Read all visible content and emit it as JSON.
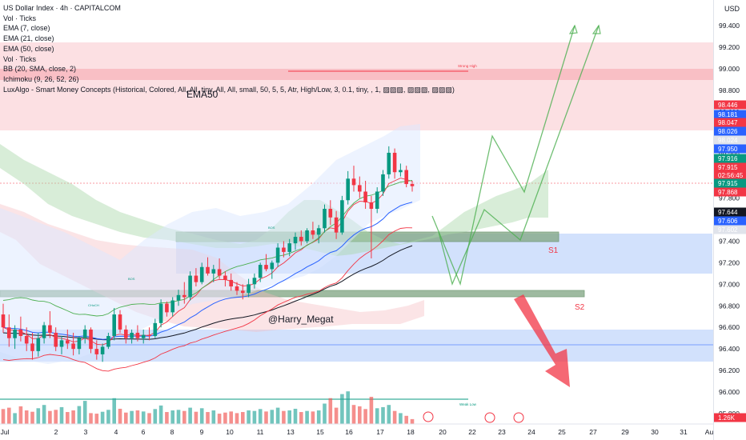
{
  "legend": {
    "title": "US Dollar Index · 4h · CAPITALCOM",
    "lines": [
      "Vol · Ticks",
      "EMA (7, close)",
      "EMA (21, close)",
      "EMA (50, close)",
      "Vol · Ticks",
      "BB (20, SMA, close, 2)",
      "Ichimoku (9, 26, 52, 26)",
      "LuxAlgo - Smart Money Concepts (Historical, Colored, All, All, tiny, All, All, small, 50, 5, 5, Atr, High/Low, 3, 0.1, tiny, , 1, ▨▨▨, ▨▨▨, ▨▨▨)"
    ]
  },
  "price_axis": {
    "currency": "USD",
    "ticks": [
      "99.400",
      "99.200",
      "99.000",
      "98.800",
      "98.600",
      "98.400",
      "98.200",
      "98.000",
      "97.800",
      "97.600",
      "97.400",
      "97.200",
      "97.000",
      "96.800",
      "96.600",
      "96.400",
      "96.200",
      "96.000",
      "95.800"
    ],
    "tags": [
      {
        "text": "98.446",
        "color": "#f23645"
      },
      {
        "text": "98.181",
        "color": "#2962ff"
      },
      {
        "text": "98.047",
        "color": "#f23645"
      },
      {
        "text": "98.026",
        "color": "#2962ff"
      },
      {
        "text": "98.024",
        "color": "#e0e3eb"
      },
      {
        "text": "97.950",
        "color": "#2962ff"
      },
      {
        "text": "97.916",
        "color": "#089981"
      },
      {
        "text": "97.915",
        "color": "#f23645"
      },
      {
        "text": "02:56:45",
        "color": "#f23645"
      },
      {
        "text": "97.915",
        "color": "#089981"
      },
      {
        "text": "97.868",
        "color": "#f23645"
      },
      {
        "text": "97.644",
        "color": "#131722"
      },
      {
        "text": "97.606",
        "color": "#2962ff"
      },
      {
        "text": "97.602",
        "color": "#e0e3eb"
      },
      {
        "text": "1.26K",
        "color": "#f23645"
      }
    ]
  },
  "time_axis": {
    "labels": [
      "Jul",
      "2",
      "3",
      "4",
      "6",
      "8",
      "9",
      "10",
      "11",
      "13",
      "15",
      "16",
      "17",
      "18",
      "20",
      "22",
      "23",
      "24",
      "25",
      "27",
      "29",
      "30",
      "31",
      "Au"
    ]
  },
  "annotations": {
    "ema50": "EMA50",
    "s1": "S1",
    "s2": "S2",
    "watermark": "@Harry_Megat",
    "strong_high": "Strong High",
    "weak_low": "Weak Low",
    "bos": "BOS",
    "choch": "CHoCH"
  },
  "colors": {
    "bull": "#089981",
    "bear": "#f23645",
    "projection": "#4caf50",
    "zone_red": "#f8c8cc",
    "zone_blue": "#c7d9fb",
    "zone_green": "#6aa06e"
  },
  "chart_data": {
    "type": "candlestick",
    "title": "US Dollar Index · 4h · CAPITALCOM",
    "ylim": [
      95.8,
      99.5
    ],
    "y_ticks": [
      99.4,
      99.2,
      99.0,
      98.8,
      98.6,
      98.4,
      98.2,
      98.0,
      97.8,
      97.6,
      97.4,
      97.2,
      97.0,
      96.8,
      96.6,
      96.4,
      96.2,
      96.0,
      95.8
    ],
    "candles": [
      [
        96.72,
        96.82,
        96.55,
        96.6
      ],
      [
        96.6,
        96.72,
        96.42,
        96.5
      ],
      [
        96.5,
        96.62,
        96.4,
        96.58
      ],
      [
        96.58,
        96.7,
        96.47,
        96.52
      ],
      [
        96.52,
        96.6,
        96.38,
        96.45
      ],
      [
        96.45,
        96.55,
        96.3,
        96.38
      ],
      [
        96.38,
        96.55,
        96.33,
        96.5
      ],
      [
        96.5,
        96.65,
        96.45,
        96.62
      ],
      [
        96.62,
        96.75,
        96.5,
        96.55
      ],
      [
        96.55,
        96.6,
        96.38,
        96.42
      ],
      [
        96.42,
        96.52,
        96.35,
        96.48
      ],
      [
        96.48,
        96.58,
        96.4,
        96.45
      ],
      [
        96.45,
        96.55,
        96.34,
        96.4
      ],
      [
        96.4,
        96.52,
        96.35,
        96.5
      ],
      [
        96.5,
        96.62,
        96.45,
        96.58
      ],
      [
        96.58,
        96.6,
        96.36,
        96.4
      ],
      [
        96.4,
        96.48,
        96.3,
        96.35
      ],
      [
        96.35,
        96.45,
        96.28,
        96.42
      ],
      [
        96.42,
        96.55,
        96.4,
        96.52
      ],
      [
        96.52,
        96.78,
        96.48,
        96.72
      ],
      [
        96.72,
        96.76,
        96.55,
        96.58
      ],
      [
        96.58,
        96.62,
        96.45,
        96.5
      ],
      [
        96.5,
        96.58,
        96.45,
        96.55
      ],
      [
        96.55,
        96.62,
        96.47,
        96.5
      ],
      [
        96.5,
        96.58,
        96.45,
        96.53
      ],
      [
        96.53,
        96.6,
        96.48,
        96.52
      ],
      [
        96.52,
        96.68,
        96.5,
        96.64
      ],
      [
        96.64,
        96.86,
        96.6,
        96.82
      ],
      [
        96.82,
        96.84,
        96.7,
        96.74
      ],
      [
        96.74,
        96.88,
        96.7,
        96.85
      ],
      [
        96.85,
        96.95,
        96.8,
        96.9
      ],
      [
        96.9,
        97.02,
        96.82,
        96.88
      ],
      [
        96.88,
        97.12,
        96.85,
        97.08
      ],
      [
        97.08,
        97.15,
        96.98,
        97.02
      ],
      [
        97.02,
        97.2,
        97.0,
        97.16
      ],
      [
        97.16,
        97.25,
        97.08,
        97.1
      ],
      [
        97.1,
        97.18,
        97.02,
        97.14
      ],
      [
        97.14,
        97.24,
        97.05,
        97.08
      ],
      [
        97.08,
        97.12,
        96.98,
        97.04
      ],
      [
        97.04,
        97.1,
        96.94,
        96.98
      ],
      [
        96.98,
        97.02,
        96.9,
        96.94
      ],
      [
        96.94,
        97.0,
        96.86,
        96.92
      ],
      [
        96.92,
        97.05,
        96.88,
        97.0
      ],
      [
        97.0,
        97.1,
        96.96,
        97.06
      ],
      [
        97.06,
        97.2,
        97.02,
        97.18
      ],
      [
        97.18,
        97.28,
        97.12,
        97.14
      ],
      [
        97.14,
        97.22,
        97.05,
        97.2
      ],
      [
        97.2,
        97.38,
        97.16,
        97.34
      ],
      [
        97.34,
        97.4,
        97.25,
        97.3
      ],
      [
        97.3,
        97.42,
        97.26,
        97.38
      ],
      [
        97.38,
        97.48,
        97.32,
        97.44
      ],
      [
        97.44,
        97.5,
        97.36,
        97.4
      ],
      [
        97.4,
        97.52,
        97.38,
        97.5
      ],
      [
        97.5,
        97.58,
        97.42,
        97.46
      ],
      [
        97.46,
        97.55,
        97.38,
        97.52
      ],
      [
        97.52,
        97.74,
        97.48,
        97.7
      ],
      [
        97.7,
        97.78,
        97.55,
        97.62
      ],
      [
        97.62,
        97.68,
        97.42,
        97.48
      ],
      [
        97.48,
        97.82,
        97.46,
        97.78
      ],
      [
        97.78,
        98.05,
        97.74,
        97.98
      ],
      [
        97.98,
        98.1,
        97.86,
        97.92
      ],
      [
        97.92,
        98.0,
        97.8,
        97.86
      ],
      [
        97.86,
        97.96,
        97.7,
        97.76
      ],
      [
        97.76,
        97.82,
        97.24,
        97.7
      ],
      [
        97.7,
        97.9,
        97.66,
        97.86
      ],
      [
        97.86,
        98.06,
        97.82,
        98.02
      ],
      [
        98.02,
        98.28,
        97.98,
        98.22
      ],
      [
        98.22,
        98.26,
        97.98,
        98.04
      ],
      [
        98.04,
        98.12,
        98.0,
        98.06
      ],
      [
        98.06,
        98.1,
        97.9,
        97.93
      ],
      [
        97.93,
        97.96,
        97.86,
        97.91
      ]
    ],
    "volumes": [
      55,
      60,
      40,
      65,
      50,
      45,
      58,
      70,
      48,
      52,
      62,
      44,
      50,
      66,
      85,
      40,
      38,
      45,
      52,
      95,
      56,
      42,
      48,
      50,
      46,
      40,
      55,
      68,
      44,
      50,
      52,
      48,
      60,
      45,
      58,
      44,
      50,
      38,
      42,
      46,
      40,
      44,
      50,
      48,
      55,
      46,
      52,
      60,
      48,
      50,
      56,
      44,
      48,
      46,
      50,
      75,
      95,
      60,
      110,
      120,
      70,
      65,
      55,
      100,
      58,
      62,
      70,
      48,
      40,
      30,
      18
    ]
  }
}
